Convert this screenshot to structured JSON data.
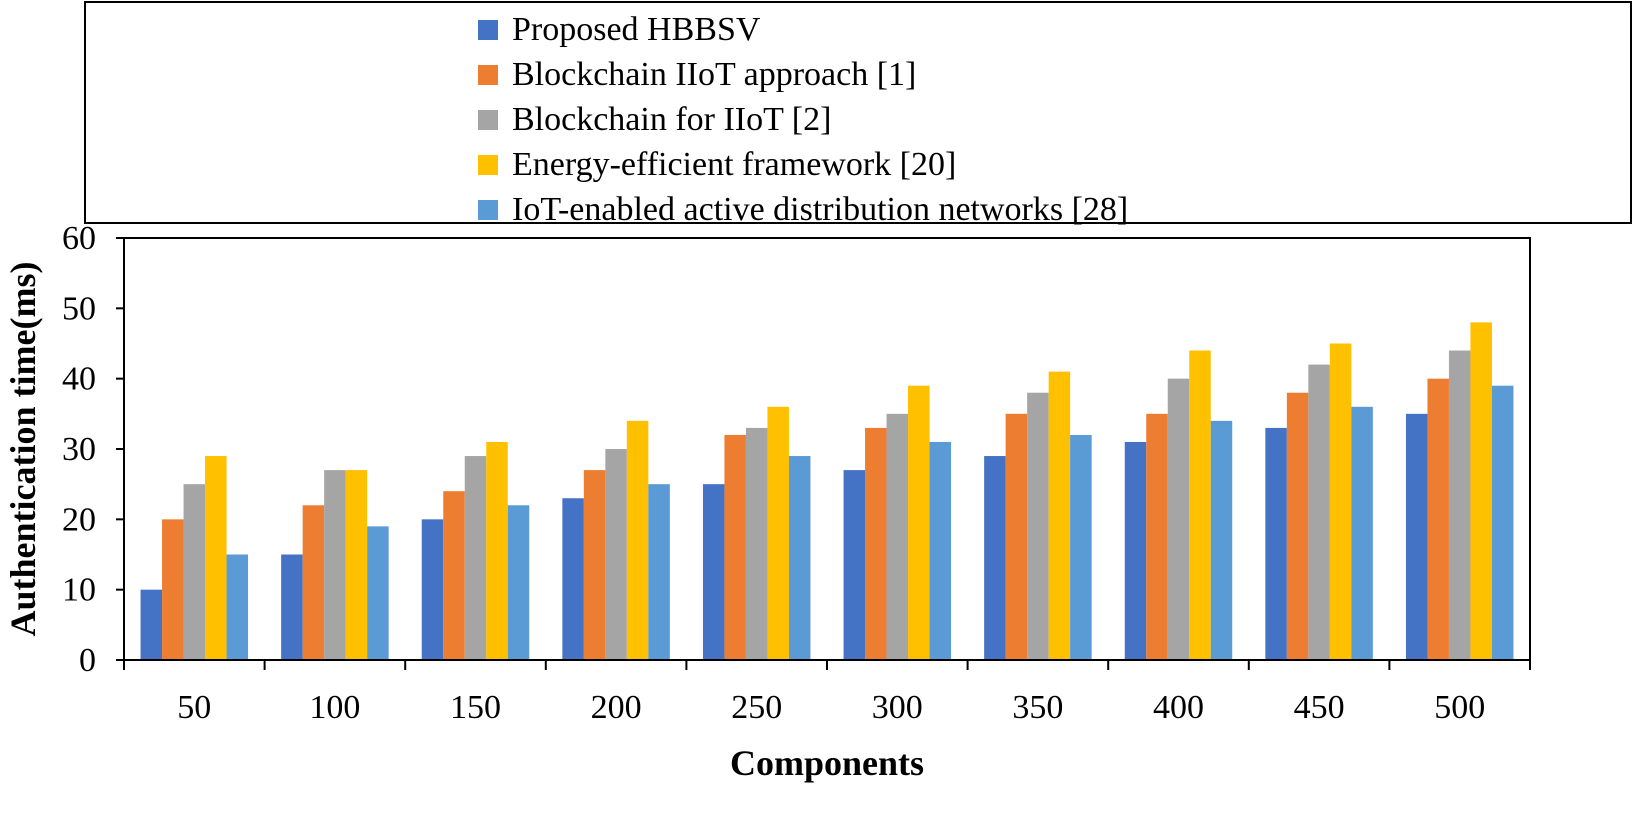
{
  "chart_data": {
    "type": "bar",
    "title": "",
    "xlabel": "Components",
    "ylabel": "Authentication time(ms)",
    "ylim": [
      0,
      60
    ],
    "yticks": [
      0,
      10,
      20,
      30,
      40,
      50,
      60
    ],
    "legend_position": "top",
    "categories": [
      "50",
      "100",
      "150",
      "200",
      "250",
      "300",
      "350",
      "400",
      "450",
      "500"
    ],
    "series": [
      {
        "name": "Proposed HBBSV",
        "color": "#4472C4",
        "values": [
          10,
          15,
          20,
          23,
          25,
          27,
          29,
          31,
          33,
          35
        ]
      },
      {
        "name": "Blockchain IIoT approach [1]",
        "color": "#ED7D31",
        "values": [
          20,
          22,
          24,
          27,
          32,
          33,
          35,
          35,
          38,
          40
        ]
      },
      {
        "name": "Blockchain for IIoT [2]",
        "color": "#A5A5A5",
        "values": [
          25,
          27,
          29,
          30,
          33,
          35,
          38,
          40,
          42,
          44
        ]
      },
      {
        "name": "Energy-efficient framework [20]",
        "color": "#FFC000",
        "values": [
          29,
          27,
          31,
          34,
          36,
          39,
          41,
          44,
          45,
          48
        ]
      },
      {
        "name": "IoT-enabled active distribution networks [28]",
        "color": "#5B9BD5",
        "values": [
          15,
          19,
          22,
          25,
          29,
          31,
          32,
          34,
          36,
          39
        ]
      }
    ]
  }
}
